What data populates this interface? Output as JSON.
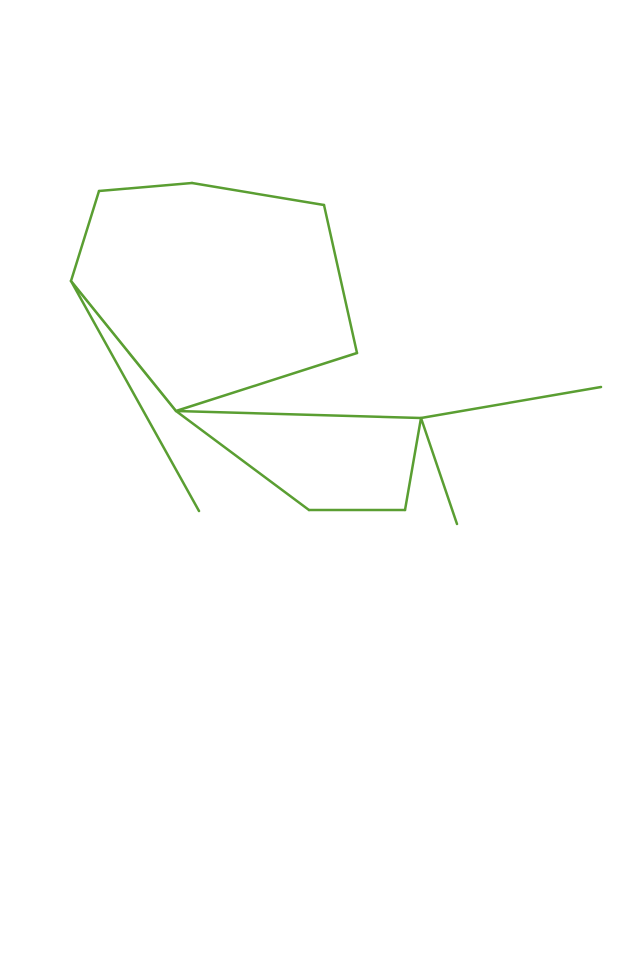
{
  "diagram": {
    "kind": "line-structure",
    "stroke_color": "#5a9e32",
    "background_color": "#ffffff",
    "nodes": [
      "v1",
      "v2",
      "v3",
      "v4",
      "v5",
      "v6",
      "v7",
      "v8",
      "v9",
      "v10",
      "v11",
      "v12",
      "v13"
    ],
    "edges": [
      [
        "v1",
        "v2"
      ],
      [
        "v2",
        "v3"
      ],
      [
        "v3",
        "v4"
      ],
      [
        "v4",
        "v5"
      ],
      [
        "v5",
        "v6"
      ],
      [
        "v6",
        "v1"
      ],
      [
        "v5",
        "v7"
      ],
      [
        "v7",
        "v8"
      ],
      [
        "v8",
        "v9"
      ],
      [
        "v9",
        "v10"
      ],
      [
        "v10",
        "v6"
      ],
      [
        "v6",
        "v11"
      ],
      [
        "v7",
        "v12"
      ],
      [
        "v7",
        "v13"
      ]
    ]
  }
}
